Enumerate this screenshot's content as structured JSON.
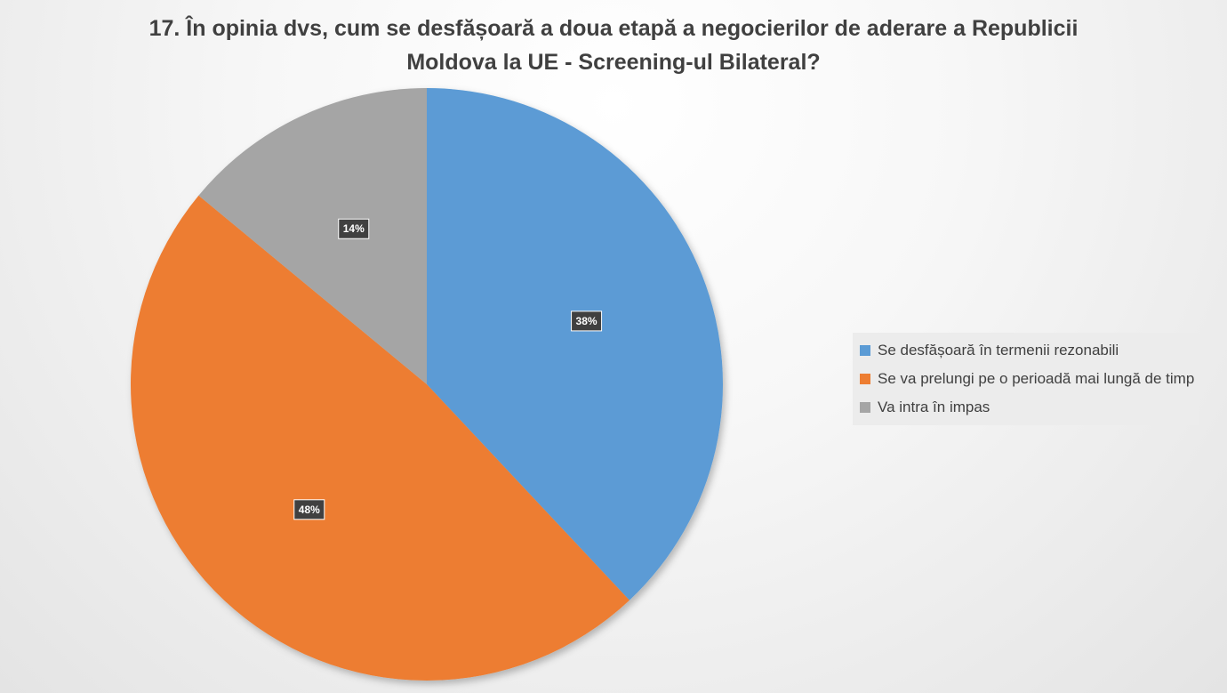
{
  "chart_data": {
    "type": "pie",
    "title_lines": [
      "17. În opinia dvs, cum se desfășoară a doua etapă a negocierilor de aderare a Republicii",
      "Moldova la UE - Screening-ul Bilateral?"
    ],
    "legend_position": "right",
    "slices": [
      {
        "label": "Se desfășoară în termenii rezonabili",
        "value": 38,
        "data_label": "38%",
        "color": "#5b9bd5"
      },
      {
        "label": "Se va prelungi pe o perioadă mai lungă de timp",
        "value": 48,
        "data_label": "48%",
        "color": "#ed7d31"
      },
      {
        "label": "Va intra în impas",
        "value": 14,
        "data_label": "14%",
        "color": "#a5a5a5"
      }
    ]
  }
}
